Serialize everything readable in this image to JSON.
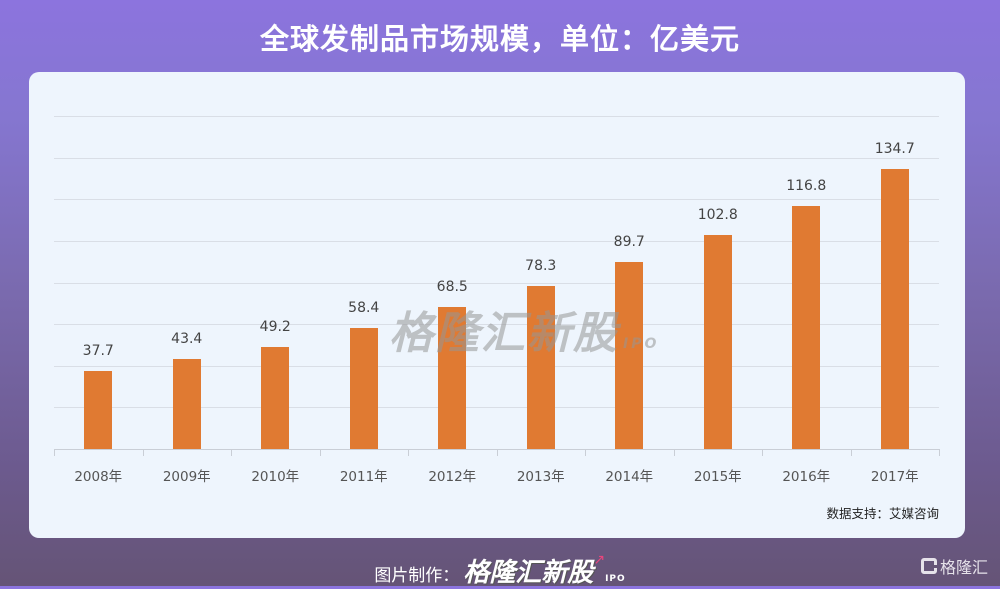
{
  "title": "全球发制品市场规模，单位：亿美元",
  "chart_data": {
    "type": "bar",
    "title": "全球发制品市场规模，单位：亿美元",
    "xlabel": "",
    "ylabel": "亿美元",
    "categories": [
      "2008年",
      "2009年",
      "2010年",
      "2011年",
      "2012年",
      "2013年",
      "2014年",
      "2015年",
      "2016年",
      "2017年"
    ],
    "values": [
      37.7,
      43.4,
      49.2,
      58.4,
      68.5,
      78.3,
      89.7,
      102.8,
      116.8,
      134.7
    ],
    "value_labels": [
      "37.7",
      "43.4",
      "49.2",
      "58.4",
      "68.5",
      "78.3",
      "89.7",
      "102.8",
      "116.8",
      "134.7"
    ],
    "ylim": [
      0,
      160
    ],
    "grid": true,
    "grid_step": 20,
    "y_tick_labels_visible": false,
    "legend": "none",
    "bar_color": "#e07a32"
  },
  "watermark": {
    "text": "格隆汇新股",
    "sub": "IPO"
  },
  "source": "数据支持：艾媒咨询",
  "footer": {
    "prefix": "图片制作：",
    "brand": "格隆汇新股",
    "arrow": "↗",
    "ipo": "IPO"
  },
  "logo": {
    "text": "格隆汇"
  },
  "colors": {
    "bar": "#e07a32",
    "card": "#eef5fd",
    "bg_top": "#8c74de",
    "bg_bottom": "#655476"
  }
}
